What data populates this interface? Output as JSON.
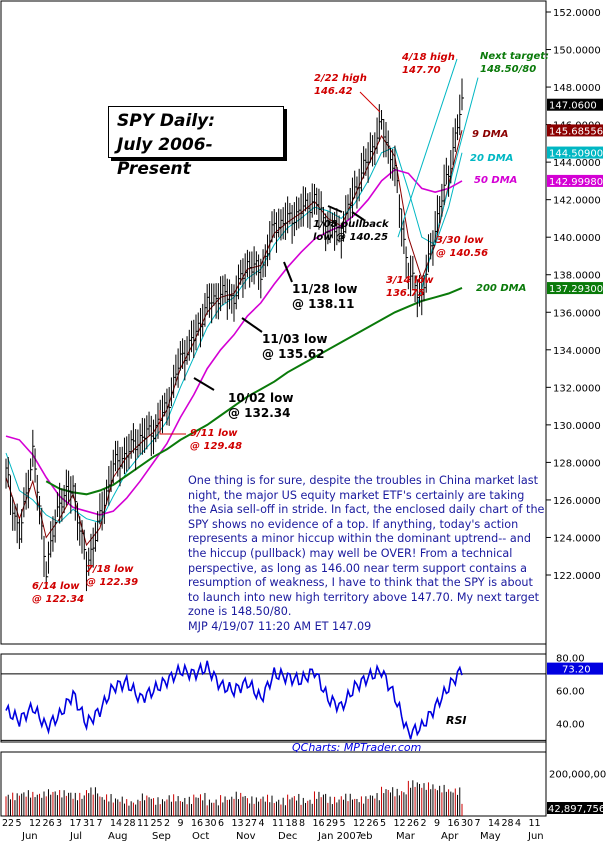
{
  "title_lines": [
    "SPY Daily:",
    "July 2006-Present"
  ],
  "commentary": "One thing is for sure, despite the troubles in China market last night, the major US equity market ETF's certainly are taking the Asia sell-off in stride. In fact, the enclosed daily chart of the SPY shows no evidence of a top. If anything, today's action represents a minor hiccup within the dominant uptrend-- and the hiccup (pullback) may well be OVER! From a technical perspective, as long as 146.00 near term support contains a resumption of weakness, I have to think that the SPY is about to launch into new high territory above 147.70. My next target zone is 148.50/80.",
  "signature": "MJP  4/19/07 11:20 AM  ET 147.09",
  "watermark": "QCharts: MPTrader.com",
  "rsi_label": "RSI",
  "colors": {
    "price": "#000000",
    "dma9": "#8b0000",
    "dma20": "#00b7c3",
    "dma50": "#d400d4",
    "dma200": "#0a7a0a",
    "red": "#d00000",
    "rsi": "#0000e0",
    "navy": "#1a1a9e"
  },
  "chart_data": [
    {
      "type": "line",
      "title": "SPY Daily: July 2006-Present",
      "ylim": [
        120,
        152.4
      ],
      "y_ticks": [
        "152.0000",
        "150.0000",
        "148.0000",
        "146.0000",
        "144.0000",
        "142.0000",
        "140.0000",
        "138.0000",
        "136.0000",
        "134.0000",
        "132.0000",
        "130.0000",
        "128.0000",
        "126.0000",
        "124.0000",
        "122.0000"
      ],
      "price_tags": [
        {
          "label": "147.0600",
          "value": 147.06,
          "color": "#000000"
        },
        {
          "label": "145.68556",
          "value": 145.69,
          "color": "#8b0000"
        },
        {
          "label": "144.50900",
          "value": 144.51,
          "color": "#00b7c3"
        },
        {
          "label": "142.99980",
          "value": 143.0,
          "color": "#d400d4"
        },
        {
          "label": "137.29300",
          "value": 137.29,
          "color": "#0a7a0a"
        }
      ],
      "close_x_index": [
        0,
        6,
        12,
        18,
        24,
        30,
        36,
        42,
        48,
        54,
        60,
        66,
        72,
        78,
        84,
        90,
        96,
        102,
        108,
        114,
        120,
        126,
        132,
        138,
        144,
        150,
        156,
        162,
        168,
        174,
        180,
        186,
        192,
        198,
        204
      ],
      "close": [
        127.5,
        124.0,
        128.6,
        122.3,
        126.0,
        126.6,
        122.4,
        125.0,
        127.8,
        128.5,
        129.3,
        129.7,
        131.0,
        133.5,
        134.6,
        136.4,
        137.0,
        136.8,
        138.6,
        138.1,
        140.6,
        140.9,
        141.4,
        142.0,
        140.5,
        140.3,
        142.5,
        144.2,
        146.0,
        143.5,
        138.0,
        136.8,
        140.6,
        143.5,
        147.1
      ],
      "series": [
        {
          "name": "9 DMA",
          "values": [
            127.2,
            125.0,
            127.0,
            124.0,
            125.0,
            126.3,
            123.6,
            124.5,
            127.2,
            128.3,
            129.0,
            129.6,
            130.8,
            133.0,
            134.4,
            136.0,
            136.8,
            137.0,
            138.3,
            138.5,
            140.2,
            140.8,
            141.3,
            141.9,
            141.0,
            140.6,
            142.2,
            143.8,
            145.4,
            144.3,
            140.0,
            137.8,
            139.6,
            142.8,
            145.7
          ]
        },
        {
          "name": "20 DMA",
          "values": [
            128.5,
            126.5,
            126.0,
            125.2,
            124.8,
            125.5,
            125.0,
            124.8,
            126.2,
            127.5,
            128.4,
            129.2,
            130.2,
            132.0,
            133.6,
            135.2,
            136.3,
            136.8,
            137.8,
            138.3,
            139.6,
            140.5,
            141.0,
            141.6,
            141.4,
            141.0,
            141.8,
            143.0,
            144.5,
            144.8,
            142.5,
            140.0,
            139.6,
            141.6,
            144.5
          ]
        },
        {
          "name": "50 DMA",
          "values": [
            129.4,
            129.2,
            128.4,
            127.2,
            126.2,
            125.6,
            125.4,
            125.2,
            125.4,
            126.1,
            127.0,
            128.0,
            129.0,
            130.4,
            131.6,
            133.0,
            134.0,
            134.8,
            135.8,
            136.5,
            137.5,
            138.4,
            139.2,
            139.9,
            140.3,
            140.6,
            141.2,
            142.0,
            143.0,
            143.6,
            143.4,
            142.6,
            142.4,
            142.6,
            143.0
          ]
        },
        {
          "name": "200 DMA",
          "values": [
            null,
            null,
            null,
            127.0,
            126.6,
            126.4,
            126.3,
            126.5,
            126.8,
            127.3,
            127.8,
            128.3,
            128.7,
            129.2,
            129.6,
            130.0,
            130.5,
            131.0,
            131.5,
            131.9,
            132.3,
            132.8,
            133.2,
            133.6,
            134.0,
            134.4,
            134.8,
            135.2,
            135.6,
            136.0,
            136.3,
            136.6,
            136.8,
            137.0,
            137.3
          ]
        }
      ],
      "series_labels": [
        {
          "text": "9 DMA",
          "color": "#8b0000"
        },
        {
          "text": "20 DMA",
          "color": "#00b7c3"
        },
        {
          "text": "50 DMA",
          "color": "#d400d4"
        },
        {
          "text": "200 DMA",
          "color": "#0a7a0a"
        }
      ],
      "annotations": {
        "next_target": [
          "Next target:",
          "148.50/80"
        ],
        "apr18_high": [
          "4/18 high",
          "147.70"
        ],
        "feb22_high": [
          "2/22 high",
          "146.42"
        ],
        "jan08_low": [
          "1/08 pullback",
          "low @ 140.25"
        ],
        "nov28_low": [
          "11/28 low",
          "@ 138.11"
        ],
        "nov03_low": [
          "11/03 low",
          "@ 135.62"
        ],
        "oct02_low": [
          "10/02 low",
          "@ 132.34"
        ],
        "sep11_low": [
          "9/11 low",
          "@ 129.48"
        ],
        "jul18_low": [
          "7/18 low",
          "@ 122.39"
        ],
        "jun14_low": [
          "6/14 low",
          "@ 122.34"
        ],
        "mar30_low": [
          "3/30 low",
          "@ 140.56"
        ],
        "mar14_low": [
          "3/14 low",
          "136.75"
        ]
      }
    },
    {
      "type": "line",
      "name": "RSI",
      "ylim": [
        29,
        82
      ],
      "y_ticks": [
        "80.00",
        "60.00",
        "40.00"
      ],
      "current_tag": "73.20",
      "overbought": 70,
      "oversold": 30,
      "values": [
        48,
        42,
        50,
        38,
        45,
        58,
        40,
        48,
        62,
        65,
        55,
        60,
        66,
        72,
        70,
        74,
        63,
        60,
        65,
        55,
        70,
        68,
        66,
        72,
        55,
        50,
        62,
        68,
        72,
        56,
        34,
        38,
        50,
        62,
        73
      ]
    },
    {
      "type": "bar",
      "name": "Volume",
      "y_ticks": [
        "200,000,00"
      ],
      "current_tag": "42,897,756",
      "ylim": [
        0,
        300000000
      ],
      "values": [
        92,
        104,
        98,
        110,
        105,
        92,
        118,
        86,
        76,
        62,
        88,
        70,
        84,
        72,
        90,
        66,
        80,
        96,
        74,
        82,
        68,
        86,
        70,
        98,
        74,
        88,
        76,
        92,
        120,
        110,
        150,
        140,
        128,
        116,
        72
      ]
    }
  ],
  "x_axis": {
    "day_labels": [
      "22",
      "5",
      "12",
      "26",
      "3",
      "17",
      "31",
      "7",
      "14",
      "28",
      "11",
      "25",
      "2",
      "9",
      "16",
      "30",
      "6",
      "13",
      "27",
      "4",
      "11",
      "18",
      "8",
      "16",
      "29",
      "5",
      "12",
      "26",
      "5",
      "12",
      "26",
      "2",
      "9",
      "16",
      "30",
      "7",
      "14",
      "28",
      "4",
      "11"
    ],
    "months": [
      "Jun",
      "Jul",
      "Aug",
      "Sep",
      "Oct",
      "Nov",
      "Dec",
      "Jan 2007",
      "eb",
      "Mar",
      "Apr",
      "May",
      "Jun"
    ]
  }
}
